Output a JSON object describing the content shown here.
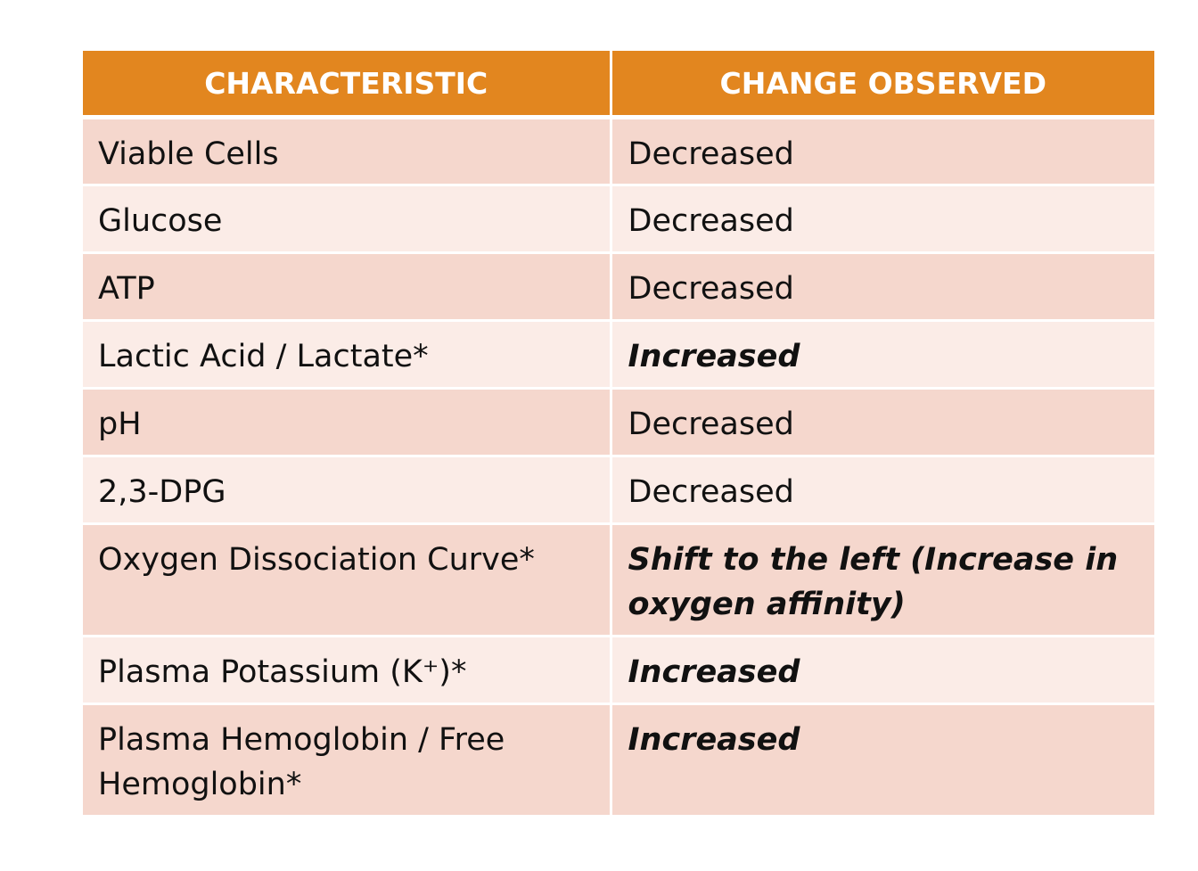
{
  "table": {
    "headers": [
      "CHARACTERISTIC",
      "CHANGE OBSERVED"
    ],
    "rows": [
      {
        "characteristic": "Viable Cells",
        "change": "Decreased",
        "emphasized": false
      },
      {
        "characteristic": "Glucose",
        "change": "Decreased",
        "emphasized": false
      },
      {
        "characteristic": "ATP",
        "change": "Decreased",
        "emphasized": false
      },
      {
        "characteristic": "Lactic Acid / Lactate*",
        "change": "Increased",
        "emphasized": true
      },
      {
        "characteristic": "pH",
        "change": "Decreased",
        "emphasized": false
      },
      {
        "characteristic": "2,3-DPG",
        "change": "Decreased",
        "emphasized": false
      },
      {
        "characteristic": "Oxygen Dissociation Curve*",
        "change": "Shift to the left (Increase in oxygen affinity)",
        "emphasized": true
      },
      {
        "characteristic": "Plasma Potassium (K⁺)*",
        "change": "Increased",
        "emphasized": true
      },
      {
        "characteristic": "Plasma Hemoglobin / Free Hemoglobin*",
        "change": "Increased",
        "emphasized": true
      }
    ]
  },
  "colors": {
    "header_bg": "#e2861f",
    "header_text": "#ffffff",
    "row_dark": "#f5d7cd",
    "row_light": "#fbece7"
  }
}
